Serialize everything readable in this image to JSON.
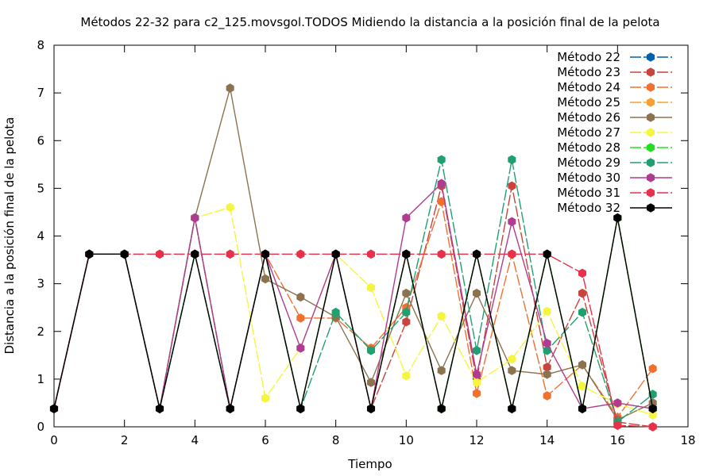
{
  "chart_data": {
    "type": "line",
    "title": "Métodos 22-32 para c2_125.movsgol.TODOS Midiendo la distancia a la posición final de la pelota",
    "xlabel": "Tiempo",
    "ylabel": "Distancia a la posición final de la pelota",
    "xlim": [
      0,
      18
    ],
    "ylim": [
      0,
      8
    ],
    "xticks": [
      "0",
      "2",
      "4",
      "6",
      "8",
      "10",
      "12",
      "14",
      "16",
      "18"
    ],
    "yticks": [
      "0",
      "1",
      "2",
      "3",
      "4",
      "5",
      "6",
      "7",
      "8"
    ],
    "grid": false,
    "legend_position": "top-right",
    "x": [
      0,
      1,
      2,
      3,
      4,
      5,
      6,
      7,
      8,
      9,
      10,
      11,
      12,
      13,
      14,
      15,
      16,
      17
    ],
    "series": [
      {
        "name": "Método 22",
        "color": "#0060ad",
        "dash": "dashed",
        "values": [
          0.38,
          3.62,
          3.62,
          0.38,
          3.62,
          0.38,
          3.62,
          0.38,
          3.62,
          0.38,
          3.62,
          0.38,
          3.62,
          0.38,
          3.62,
          0.38,
          4.38,
          0.38
        ]
      },
      {
        "name": "Método 23",
        "color": "#c8443c",
        "dash": "dashed",
        "values": [
          0.38,
          3.62,
          3.62,
          0.38,
          4.38,
          0.38,
          3.62,
          0.38,
          3.62,
          0.38,
          2.2,
          5.05,
          0.98,
          5.05,
          1.25,
          2.8,
          0.1,
          0.0
        ]
      },
      {
        "name": "Método 24",
        "color": "#f07030",
        "dash": "dashed",
        "values": [
          0.38,
          3.62,
          3.62,
          0.38,
          4.38,
          0.38,
          3.62,
          2.28,
          2.28,
          1.65,
          2.5,
          4.72,
          0.7,
          3.62,
          0.65,
          1.3,
          0.2,
          1.22
        ]
      },
      {
        "name": "Método 25",
        "color": "#f5a030",
        "dash": "dashed",
        "values": [
          0.38,
          3.62,
          3.62,
          0.38,
          4.38,
          0.38,
          3.62,
          0.38,
          3.62,
          0.38,
          3.62,
          0.38,
          3.62,
          0.38,
          3.62,
          0.38,
          4.38,
          0.38
        ]
      },
      {
        "name": "Método 26",
        "color": "#8c7350",
        "dash": "solid",
        "values": [
          0.38,
          3.62,
          3.62,
          0.38,
          4.38,
          7.1,
          3.1,
          2.72,
          2.3,
          0.93,
          2.8,
          1.18,
          2.8,
          1.18,
          1.1,
          1.3,
          0.15,
          0.5
        ]
      },
      {
        "name": "Método 27",
        "color": "#f5f540",
        "dash": "dashed",
        "values": [
          0.38,
          3.62,
          3.62,
          0.38,
          4.38,
          4.6,
          0.6,
          1.65,
          3.62,
          2.92,
          1.07,
          2.32,
          0.93,
          1.42,
          2.42,
          0.85,
          0.48,
          0.25
        ]
      },
      {
        "name": "Método 28",
        "color": "#20e020",
        "dash": "dashed",
        "values": [
          0.38,
          3.62,
          3.62,
          0.38,
          3.62,
          0.38,
          3.62,
          0.38,
          3.62,
          0.38,
          3.62,
          0.38,
          3.62,
          0.38,
          3.62,
          0.38,
          4.38,
          0.38
        ]
      },
      {
        "name": "Método 29",
        "color": "#20a070",
        "dash": "dashed",
        "values": [
          0.38,
          3.62,
          3.62,
          0.38,
          4.38,
          0.38,
          3.62,
          0.38,
          2.4,
          1.6,
          2.4,
          5.6,
          1.6,
          5.6,
          1.6,
          2.4,
          0.1,
          0.68
        ]
      },
      {
        "name": "Método 30",
        "color": "#b03c90",
        "dash": "solid",
        "values": [
          0.38,
          3.62,
          3.62,
          0.38,
          4.38,
          0.38,
          3.62,
          1.65,
          3.62,
          0.38,
          4.38,
          5.1,
          1.1,
          4.3,
          1.75,
          0.38,
          0.5,
          0.38
        ]
      },
      {
        "name": "Método 31",
        "color": "#e8304a",
        "dash": "dashed",
        "values": [
          0.38,
          3.62,
          3.62,
          3.62,
          3.62,
          3.62,
          3.62,
          3.62,
          3.62,
          3.62,
          3.62,
          3.62,
          3.62,
          3.62,
          3.62,
          3.22,
          0.03,
          0.0
        ]
      },
      {
        "name": "Método 32",
        "color": "#000000",
        "dash": "solid",
        "values": [
          0.38,
          3.62,
          3.62,
          0.38,
          3.62,
          0.38,
          3.62,
          0.38,
          3.62,
          0.38,
          3.62,
          0.38,
          3.62,
          0.38,
          3.62,
          0.38,
          4.38,
          0.38
        ]
      }
    ]
  }
}
